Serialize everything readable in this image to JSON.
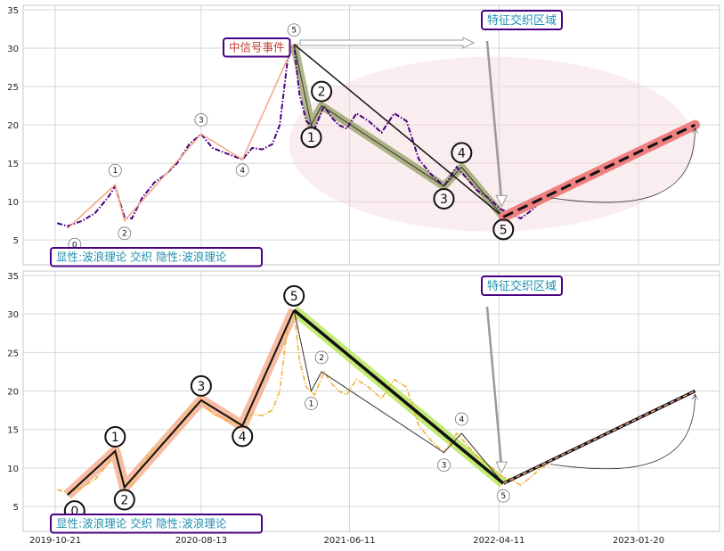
{
  "chart_data": [
    {
      "type": "line",
      "panel": "top",
      "x_axis": {
        "type": "date",
        "ticks": [
          "2019-10-21",
          "2020-08-13",
          "2021-06-11",
          "2022-04-11",
          "2023-01-20"
        ]
      },
      "ylim": [
        2,
        35
      ],
      "yticks": [
        5,
        10,
        15,
        20,
        25,
        30,
        35
      ],
      "grid": true,
      "price_series": {
        "color": "#4b0082",
        "style": "dash-dot",
        "x": [
          "2019-10-25",
          "2019-11-15",
          "2019-12-15",
          "2020-01-10",
          "2020-02-05",
          "2020-02-20",
          "2020-03-10",
          "2020-03-25",
          "2020-04-15",
          "2020-05-10",
          "2020-06-01",
          "2020-06-25",
          "2020-07-20",
          "2020-08-13",
          "2020-09-05",
          "2020-09-25",
          "2020-10-15",
          "2020-11-05",
          "2020-11-25",
          "2020-12-15",
          "2021-01-05",
          "2021-01-20",
          "2021-02-05",
          "2021-02-18",
          "2021-03-01",
          "2021-03-15",
          "2021-04-01",
          "2021-04-20",
          "2021-05-05",
          "2021-05-20",
          "2021-06-05",
          "2021-06-25",
          "2021-07-20",
          "2021-08-15",
          "2021-09-10",
          "2021-10-05",
          "2021-10-30",
          "2021-11-25",
          "2021-12-20",
          "2022-01-15",
          "2022-02-05",
          "2022-02-25",
          "2022-03-20",
          "2022-04-15",
          "2022-05-05",
          "2022-05-25",
          "2022-06-15",
          "2022-07-05",
          "2022-07-25"
        ],
        "y": [
          7.2,
          6.8,
          7.5,
          8.5,
          10.5,
          12.0,
          8.0,
          7.8,
          10.5,
          12.5,
          13.5,
          15.0,
          17.5,
          18.8,
          17.0,
          16.5,
          16.0,
          15.5,
          17.0,
          16.8,
          17.5,
          20.0,
          28.5,
          30.5,
          24.0,
          20.5,
          19.5,
          22.5,
          21.0,
          20.0,
          19.5,
          21.5,
          20.5,
          19.0,
          21.5,
          20.5,
          15.5,
          13.5,
          12.0,
          14.5,
          13.0,
          11.5,
          10.5,
          9.0,
          8.5,
          7.8,
          8.8,
          10.0,
          10.5
        ]
      },
      "wave_line": {
        "color": "#f4a582",
        "points": [
          {
            "label": "0",
            "x": "2019-11-15",
            "y": 6.5
          },
          {
            "label": "1",
            "x": "2020-02-20",
            "y": 12.2
          },
          {
            "label": "2",
            "x": "2020-03-10",
            "y": 7.5
          },
          {
            "label": "3",
            "x": "2020-08-13",
            "y": 18.8
          },
          {
            "label": "4",
            "x": "2020-11-05",
            "y": 15.5
          },
          {
            "label": "5",
            "x": "2021-02-18",
            "y": 30.5
          }
        ]
      },
      "correction_wave": {
        "color": "#7a8b3c",
        "points": [
          {
            "label": "0",
            "x": "2021-02-18",
            "y": 30.5
          },
          {
            "label": "1",
            "x": "2021-03-25",
            "y": 20.0
          },
          {
            "label": "2",
            "x": "2021-04-15",
            "y": 22.5
          },
          {
            "label": "3",
            "x": "2021-12-20",
            "y": 12.0
          },
          {
            "label": "4",
            "x": "2022-01-25",
            "y": 14.5
          },
          {
            "label": "5",
            "x": "2022-04-20",
            "y": 8.0
          }
        ]
      },
      "forecast": {
        "from": {
          "x": "2022-04-20",
          "y": 8.0
        },
        "to": {
          "x": "2023-05-15",
          "y": 20.0
        },
        "color": "#f08080"
      },
      "feature_zone": {
        "center": {
          "x": "2022-04-15",
          "y": 17.5
        }
      },
      "annotations": {
        "signal_event": "中信号事件",
        "feature_area": "特征交织区域",
        "legend_box": "显性:波浪理论 交织 隐性:波浪理论"
      }
    },
    {
      "type": "line",
      "panel": "bottom",
      "x_axis": {
        "type": "date",
        "ticks": [
          "2019-10-21",
          "2020-08-13",
          "2021-06-11",
          "2022-04-11",
          "2023-01-20"
        ]
      },
      "ylim": [
        2,
        35
      ],
      "yticks": [
        5,
        10,
        15,
        20,
        25,
        30,
        35
      ],
      "grid": true,
      "price_series": {
        "color": "#f0b43c",
        "style": "dash-dot",
        "x": [
          "2019-10-25",
          "2019-11-15",
          "2019-12-15",
          "2020-01-10",
          "2020-02-05",
          "2020-02-20",
          "2020-03-10",
          "2020-03-25",
          "2020-04-15",
          "2020-05-10",
          "2020-06-01",
          "2020-06-25",
          "2020-07-20",
          "2020-08-13",
          "2020-09-05",
          "2020-09-25",
          "2020-10-15",
          "2020-11-05",
          "2020-11-25",
          "2020-12-15",
          "2021-01-05",
          "2021-01-20",
          "2021-02-05",
          "2021-02-18",
          "2021-03-01",
          "2021-03-15",
          "2021-04-01",
          "2021-04-20",
          "2021-05-05",
          "2021-05-20",
          "2021-06-05",
          "2021-06-25",
          "2021-07-20",
          "2021-08-15",
          "2021-09-10",
          "2021-10-05",
          "2021-10-30",
          "2021-11-25",
          "2021-12-20",
          "2022-01-15",
          "2022-02-05",
          "2022-02-25",
          "2022-03-20",
          "2022-04-15",
          "2022-05-05",
          "2022-05-25",
          "2022-06-15",
          "2022-07-05",
          "2022-07-25"
        ],
        "y": [
          7.2,
          6.8,
          7.5,
          8.5,
          10.5,
          12.0,
          8.0,
          7.8,
          10.5,
          12.5,
          13.5,
          15.0,
          17.5,
          18.8,
          17.0,
          16.5,
          16.0,
          15.5,
          17.0,
          16.8,
          17.5,
          20.0,
          28.5,
          30.5,
          24.0,
          20.5,
          19.5,
          22.5,
          21.0,
          20.0,
          19.5,
          21.5,
          20.5,
          19.0,
          21.5,
          20.5,
          15.5,
          13.5,
          12.0,
          14.5,
          13.0,
          11.5,
          10.5,
          9.0,
          8.5,
          7.8,
          8.8,
          10.0,
          10.5
        ]
      },
      "wave_line": {
        "color": "#f4a582",
        "points": [
          {
            "label": "0",
            "x": "2019-11-15",
            "y": 6.5
          },
          {
            "label": "1",
            "x": "2020-02-20",
            "y": 12.2
          },
          {
            "label": "2",
            "x": "2020-03-10",
            "y": 7.5
          },
          {
            "label": "3",
            "x": "2020-08-13",
            "y": 18.8
          },
          {
            "label": "4",
            "x": "2020-11-05",
            "y": 15.5
          },
          {
            "label": "5",
            "x": "2021-02-18",
            "y": 30.5
          }
        ]
      },
      "correction_wave": {
        "color": "#b5e655",
        "points": [
          {
            "label": "0",
            "x": "2021-02-18",
            "y": 30.5
          },
          {
            "label": "1",
            "x": "2021-03-25",
            "y": 20.0
          },
          {
            "label": "2",
            "x": "2021-04-15",
            "y": 22.5
          },
          {
            "label": "3",
            "x": "2021-12-20",
            "y": 12.0
          },
          {
            "label": "4",
            "x": "2022-01-25",
            "y": 14.5
          },
          {
            "label": "5",
            "x": "2022-04-20",
            "y": 8.0
          }
        ]
      },
      "forecast": {
        "from": {
          "x": "2022-04-20",
          "y": 8.0
        },
        "to": {
          "x": "2023-05-15",
          "y": 20.0
        },
        "color": "#c0392b"
      },
      "annotations": {
        "feature_area": "特征交织区域",
        "legend_box": "显性:波浪理论 交织 隐性:波浪理论"
      }
    }
  ]
}
